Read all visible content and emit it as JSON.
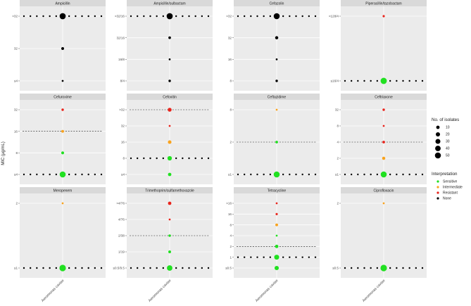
{
  "chart_data": {
    "type": "scatter",
    "y_axis_title": "MIC (µg/mL)",
    "x_category": "Aeromonas caviae",
    "legend": {
      "size_title": "No. of isolates",
      "size_values": [
        10,
        20,
        30,
        40,
        50
      ],
      "color_title": "Interpretation",
      "entries": [
        {
          "label": "Sensitive",
          "color": "#21e021"
        },
        {
          "label": "Intermediate",
          "color": "#f9a31e"
        },
        {
          "label": "Resistant",
          "color": "#e8241c"
        },
        {
          "label": "None",
          "color": "#000000"
        }
      ]
    },
    "panels": [
      {
        "title": "Ampicillin",
        "levels": [
          "≤4",
          "32",
          ">32"
        ],
        "breakpoint": null,
        "points": [
          {
            "level": ">32",
            "count": 52,
            "category": "None"
          },
          {
            "level": "32",
            "count": 5,
            "category": "None"
          },
          {
            "level": "≤4",
            "count": 1,
            "category": "None"
          }
        ],
        "tested_levels": [
          ">32"
        ]
      },
      {
        "title": "Ampicillin/sulbactam",
        "levels": [
          "8/4",
          "16/8",
          "32/16",
          ">32/16"
        ],
        "breakpoint": null,
        "points": [
          {
            "level": ">32/16",
            "count": 52,
            "category": "None"
          },
          {
            "level": "32/16",
            "count": 4,
            "category": "None"
          },
          {
            "level": "16/8",
            "count": 1,
            "category": "None"
          },
          {
            "level": "8/4",
            "count": 3,
            "category": "None"
          }
        ],
        "tested_levels": [
          ">32/16"
        ]
      },
      {
        "title": "Cefazolin",
        "levels": [
          "8",
          "16",
          "32",
          ">32"
        ],
        "breakpoint": null,
        "points": [
          {
            "level": ">32",
            "count": 50,
            "category": "None"
          },
          {
            "level": "32",
            "count": 8,
            "category": "None"
          },
          {
            "level": "16",
            "count": 1,
            "category": "None"
          },
          {
            "level": "8",
            "count": 3,
            "category": "None"
          }
        ],
        "tested_levels": [
          ">32"
        ]
      },
      {
        "title": "Piperacillin/tazobactam",
        "levels": [
          "≤16/4",
          ">128/4"
        ],
        "breakpoint": null,
        "points": [
          {
            "level": "≤16/4",
            "count": 55,
            "category": "Sensitive"
          },
          {
            "level": ">128/4",
            "count": 2,
            "category": "Resistant"
          }
        ],
        "tested_levels": [
          "≤16/4"
        ]
      },
      {
        "title": "Cefuroxime",
        "levels": [
          "≤4",
          "8",
          "16",
          "32"
        ],
        "breakpoint": "16",
        "points": [
          {
            "level": "≤4",
            "count": 50,
            "category": "Sensitive"
          },
          {
            "level": "8",
            "count": 6,
            "category": "Sensitive"
          },
          {
            "level": "16",
            "count": 5,
            "category": "Intermediate"
          },
          {
            "level": "32",
            "count": 3,
            "category": "Resistant"
          }
        ],
        "tested_levels": [
          "≤4"
        ]
      },
      {
        "title": "Cefoxitin",
        "levels": [
          "≤4",
          "8",
          "16",
          "32",
          ">32"
        ],
        "breakpoint": ">32",
        "points": [
          {
            "level": ">32",
            "count": 15,
            "category": "Resistant"
          },
          {
            "level": "32",
            "count": 1,
            "category": "Resistant"
          },
          {
            "level": "16",
            "count": 12,
            "category": "Intermediate"
          },
          {
            "level": "8",
            "count": 22,
            "category": "Sensitive"
          },
          {
            "level": "≤4",
            "count": 10,
            "category": "Sensitive"
          }
        ],
        "tested_levels": [
          "8"
        ]
      },
      {
        "title": "Ceftazidime",
        "levels": [
          "≤1",
          "2",
          "8"
        ],
        "breakpoint": "2",
        "points": [
          {
            "level": "≤1",
            "count": 50,
            "category": "Sensitive"
          },
          {
            "level": "2",
            "count": 4,
            "category": "Sensitive"
          },
          {
            "level": "8",
            "count": 1,
            "category": "Intermediate"
          }
        ],
        "tested_levels": [
          "≤1"
        ]
      },
      {
        "title": "Ceftriaxone",
        "levels": [
          "≤1",
          "2",
          "4",
          "8",
          "32"
        ],
        "breakpoint": "4",
        "points": [
          {
            "level": "≤1",
            "count": 50,
            "category": "Sensitive"
          },
          {
            "level": "2",
            "count": 8,
            "category": "Intermediate"
          },
          {
            "level": "4",
            "count": 4,
            "category": "Resistant"
          },
          {
            "level": "8",
            "count": 1,
            "category": "Resistant"
          },
          {
            "level": "32",
            "count": 3,
            "category": "Resistant"
          }
        ],
        "tested_levels": [
          "≤1"
        ]
      },
      {
        "title": "Meropenem",
        "levels": [
          "≤1",
          "2"
        ],
        "breakpoint": null,
        "points": [
          {
            "level": "≤1",
            "count": 60,
            "category": "Sensitive"
          },
          {
            "level": "2",
            "count": 1,
            "category": "Intermediate"
          }
        ],
        "tested_levels": [
          "≤1"
        ]
      },
      {
        "title": "Trimethoprim/sulfamethoxazole",
        "levels": [
          "≤0.5/9.5",
          "1/19",
          "2/38",
          "4/76",
          ">4/76"
        ],
        "breakpoint": "2/38",
        "points": [
          {
            "level": "≤0.5/9.5",
            "count": 40,
            "category": "Sensitive"
          },
          {
            "level": "1/19",
            "count": 5,
            "category": "Sensitive"
          },
          {
            "level": "2/38",
            "count": 3,
            "category": "Sensitive"
          },
          {
            "level": "4/76",
            "count": 1,
            "category": "Resistant"
          },
          {
            "level": ">4/76",
            "count": 10,
            "category": "Resistant"
          }
        ],
        "tested_levels": [
          "≤0.5/9.5"
        ]
      },
      {
        "title": "Tetracycline",
        "levels": [
          "≤0.5",
          "1",
          "2",
          "4",
          "8",
          "16",
          ">16"
        ],
        "breakpoint": "2",
        "points": [
          {
            "level": "≤0.5",
            "count": 20,
            "category": "Sensitive"
          },
          {
            "level": "1",
            "count": 30,
            "category": "Sensitive"
          },
          {
            "level": "2",
            "count": 10,
            "category": "Sensitive"
          },
          {
            "level": "4",
            "count": 1,
            "category": "Sensitive"
          },
          {
            "level": "8",
            "count": 5,
            "category": "Intermediate"
          },
          {
            "level": "16",
            "count": 2,
            "category": "Resistant"
          },
          {
            "level": ">16",
            "count": 1,
            "category": "Resistant"
          }
        ],
        "tested_levels": [
          "1"
        ]
      },
      {
        "title": "Ciprofloxacin",
        "levels": [
          "≤0.5",
          "2"
        ],
        "breakpoint": null,
        "points": [
          {
            "level": "≤0.5",
            "count": 60,
            "category": "Sensitive"
          },
          {
            "level": "2",
            "count": 1,
            "category": "Intermediate"
          }
        ],
        "tested_levels": [
          "≤0.5"
        ]
      }
    ]
  }
}
